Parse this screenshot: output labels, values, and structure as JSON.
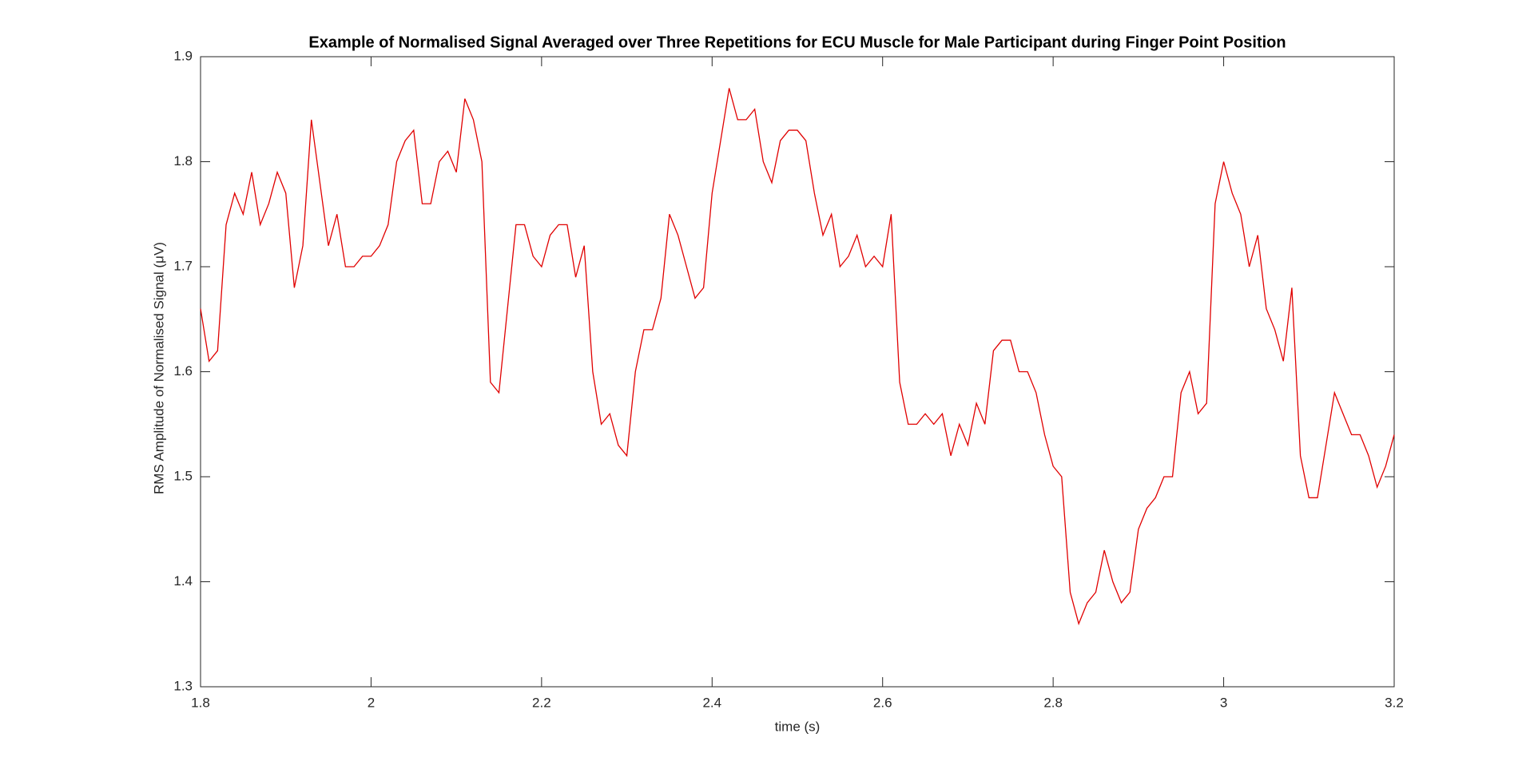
{
  "chart_data": {
    "type": "line",
    "title": "Example of Normalised Signal Averaged over Three Repetitions for ECU Muscle for Male Participant during Finger Point Position",
    "x_label": "time (s)",
    "y_label": "RMS Amplitude of Normalised Signal (μV)",
    "xlim": [
      1.8,
      3.2
    ],
    "ylim": [
      1.3,
      1.9
    ],
    "xticks": [
      1.8,
      2,
      2.2,
      2.4,
      2.6,
      2.8,
      3,
      3.2
    ],
    "yticks": [
      1.3,
      1.4,
      1.5,
      1.6,
      1.7,
      1.8,
      1.9
    ],
    "x": [
      1.8,
      1.81,
      1.82,
      1.83,
      1.84,
      1.85,
      1.86,
      1.87,
      1.88,
      1.89,
      1.9,
      1.91,
      1.92,
      1.93,
      1.94,
      1.95,
      1.96,
      1.97,
      1.98,
      1.99,
      2,
      2.01,
      2.02,
      2.03,
      2.04,
      2.05,
      2.06,
      2.07,
      2.08,
      2.09,
      2.1,
      2.11,
      2.12,
      2.13,
      2.14,
      2.15,
      2.16,
      2.17,
      2.18,
      2.19,
      2.2,
      2.21,
      2.22,
      2.23,
      2.24,
      2.25,
      2.26,
      2.27,
      2.28,
      2.29,
      2.3,
      2.31,
      2.32,
      2.33,
      2.34,
      2.35,
      2.36,
      2.37,
      2.38,
      2.39,
      2.4,
      2.41,
      2.42,
      2.43,
      2.44,
      2.45,
      2.46,
      2.47,
      2.48,
      2.49,
      2.5,
      2.51,
      2.52,
      2.53,
      2.54,
      2.55,
      2.56,
      2.57,
      2.58,
      2.59,
      2.6,
      2.61,
      2.62,
      2.63,
      2.64,
      2.65,
      2.66,
      2.67,
      2.68,
      2.69,
      2.7,
      2.71,
      2.72,
      2.73,
      2.74,
      2.75,
      2.76,
      2.77,
      2.78,
      2.79,
      2.8,
      2.81,
      2.82,
      2.83,
      2.84,
      2.85,
      2.86,
      2.87,
      2.88,
      2.89,
      2.9,
      2.91,
      2.92,
      2.93,
      2.94,
      2.95,
      2.96,
      2.97,
      2.98,
      2.99,
      3,
      3.01,
      3.02,
      3.03,
      3.04,
      3.05,
      3.06,
      3.07,
      3.08,
      3.09,
      3.1,
      3.11,
      3.12,
      3.13,
      3.14,
      3.15,
      3.16,
      3.17,
      3.18,
      3.19,
      3.2
    ],
    "series": [
      {
        "color": "#e00000",
        "values": [
          1.66,
          1.61,
          1.62,
          1.74,
          1.77,
          1.75,
          1.79,
          1.74,
          1.76,
          1.79,
          1.77,
          1.68,
          1.72,
          1.84,
          1.78,
          1.72,
          1.75,
          1.7,
          1.7,
          1.71,
          1.71,
          1.72,
          1.74,
          1.8,
          1.82,
          1.83,
          1.76,
          1.76,
          1.8,
          1.81,
          1.79,
          1.86,
          1.84,
          1.8,
          1.59,
          1.58,
          1.66,
          1.74,
          1.74,
          1.71,
          1.7,
          1.73,
          1.74,
          1.74,
          1.69,
          1.72,
          1.6,
          1.55,
          1.56,
          1.53,
          1.52,
          1.6,
          1.64,
          1.64,
          1.67,
          1.75,
          1.73,
          1.7,
          1.67,
          1.68,
          1.77,
          1.82,
          1.87,
          1.84,
          1.84,
          1.85,
          1.8,
          1.78,
          1.82,
          1.83,
          1.83,
          1.82,
          1.77,
          1.73,
          1.75,
          1.7,
          1.71,
          1.73,
          1.7,
          1.71,
          1.7,
          1.75,
          1.59,
          1.55,
          1.55,
          1.56,
          1.55,
          1.56,
          1.52,
          1.55,
          1.53,
          1.57,
          1.55,
          1.62,
          1.63,
          1.63,
          1.6,
          1.6,
          1.58,
          1.54,
          1.51,
          1.5,
          1.39,
          1.36,
          1.38,
          1.39,
          1.43,
          1.4,
          1.38,
          1.39,
          1.45,
          1.47,
          1.48,
          1.5,
          1.5,
          1.58,
          1.6,
          1.56,
          1.57,
          1.76,
          1.8,
          1.77,
          1.75,
          1.7,
          1.73,
          1.66,
          1.64,
          1.61,
          1.68,
          1.52,
          1.48,
          1.48,
          1.53,
          1.58,
          1.56,
          1.54,
          1.54,
          1.52,
          1.49,
          1.51,
          1.54
        ]
      }
    ]
  }
}
